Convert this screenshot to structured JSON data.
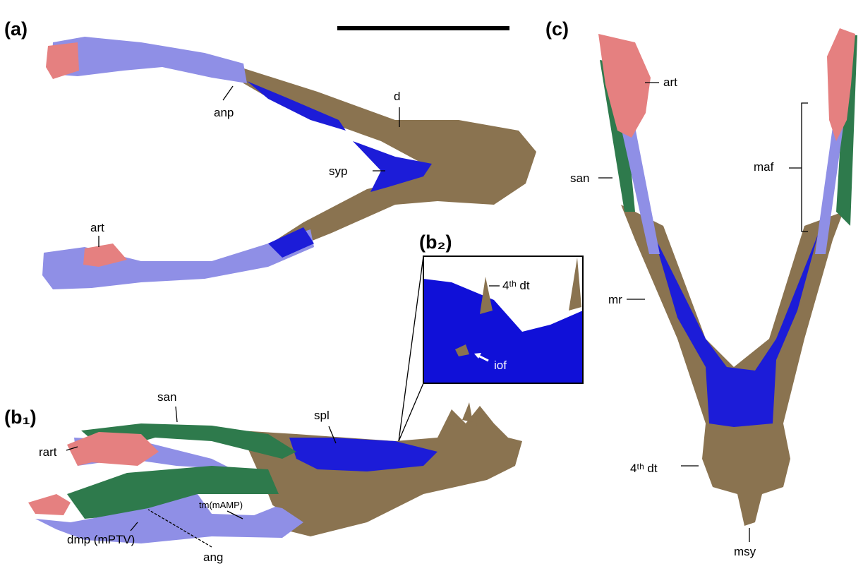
{
  "panels": {
    "a": {
      "label": "(a)",
      "annotations": [
        "anp",
        "d",
        "syp",
        "art"
      ]
    },
    "b1": {
      "label": "(b₁)",
      "annotations": [
        "san",
        "spl",
        "rart",
        "tm(mAMP)",
        "dmp (mPTV)",
        "ang"
      ]
    },
    "b2": {
      "label": "(b₂)",
      "annotations": [
        "4ᵗʰ dt",
        "iof"
      ]
    },
    "c": {
      "label": "(c)",
      "annotations": [
        "art",
        "san",
        "maf",
        "mr",
        "4ᵗʰ dt",
        "msy"
      ]
    }
  }
}
